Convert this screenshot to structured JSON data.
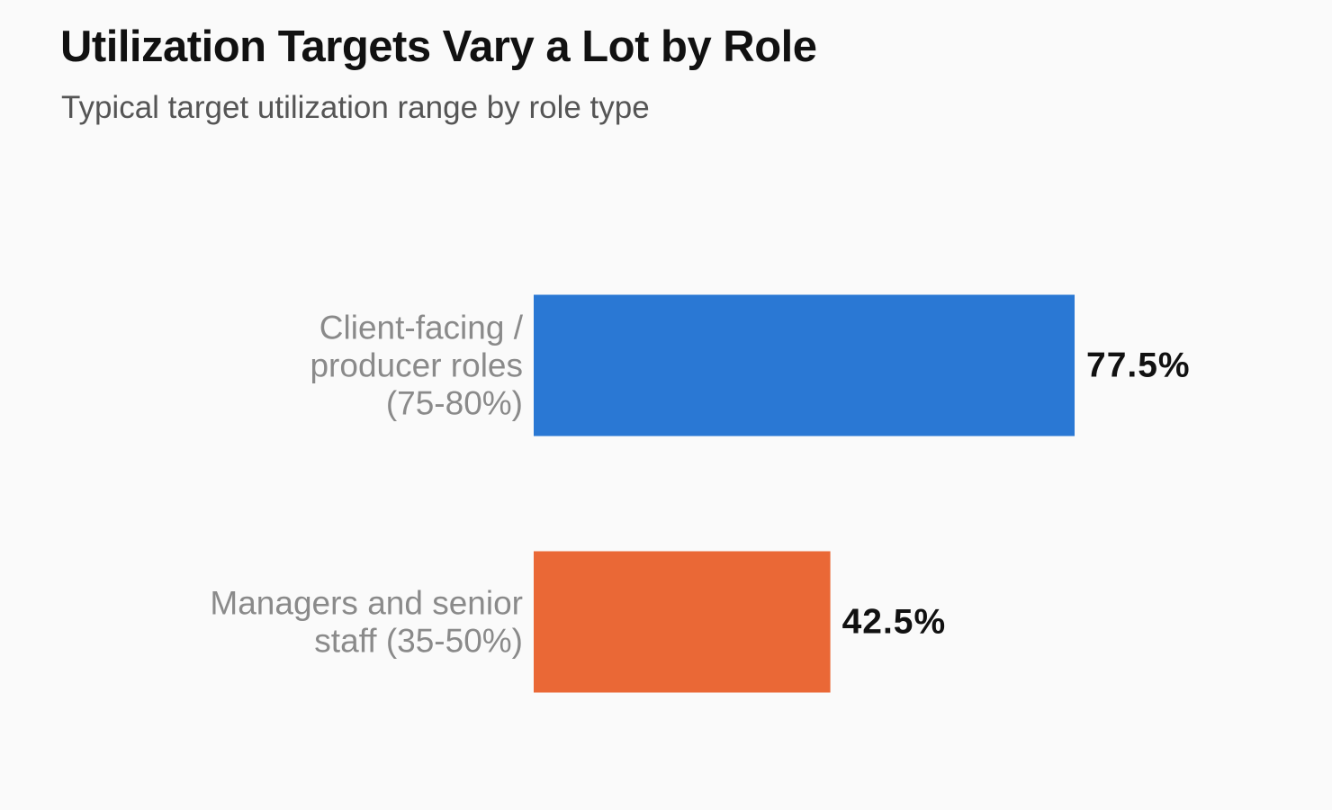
{
  "chart_data": {
    "type": "bar",
    "orientation": "horizontal",
    "title": "Utilization Targets Vary a Lot by Role",
    "subtitle": "Typical target utilization range by role type",
    "categories": [
      [
        "Client-facing /",
        "producer roles",
        "(75-80%)"
      ],
      [
        "Managers and senior",
        "staff (35-50%)"
      ]
    ],
    "values": [
      77.5,
      42.5
    ],
    "value_labels": [
      "77.5%",
      "42.5%"
    ],
    "colors": [
      "#2a78d4",
      "#ea6836"
    ],
    "xlim": [
      0,
      100
    ],
    "grid": false,
    "legend": "none",
    "xlabel": "",
    "ylabel": ""
  }
}
